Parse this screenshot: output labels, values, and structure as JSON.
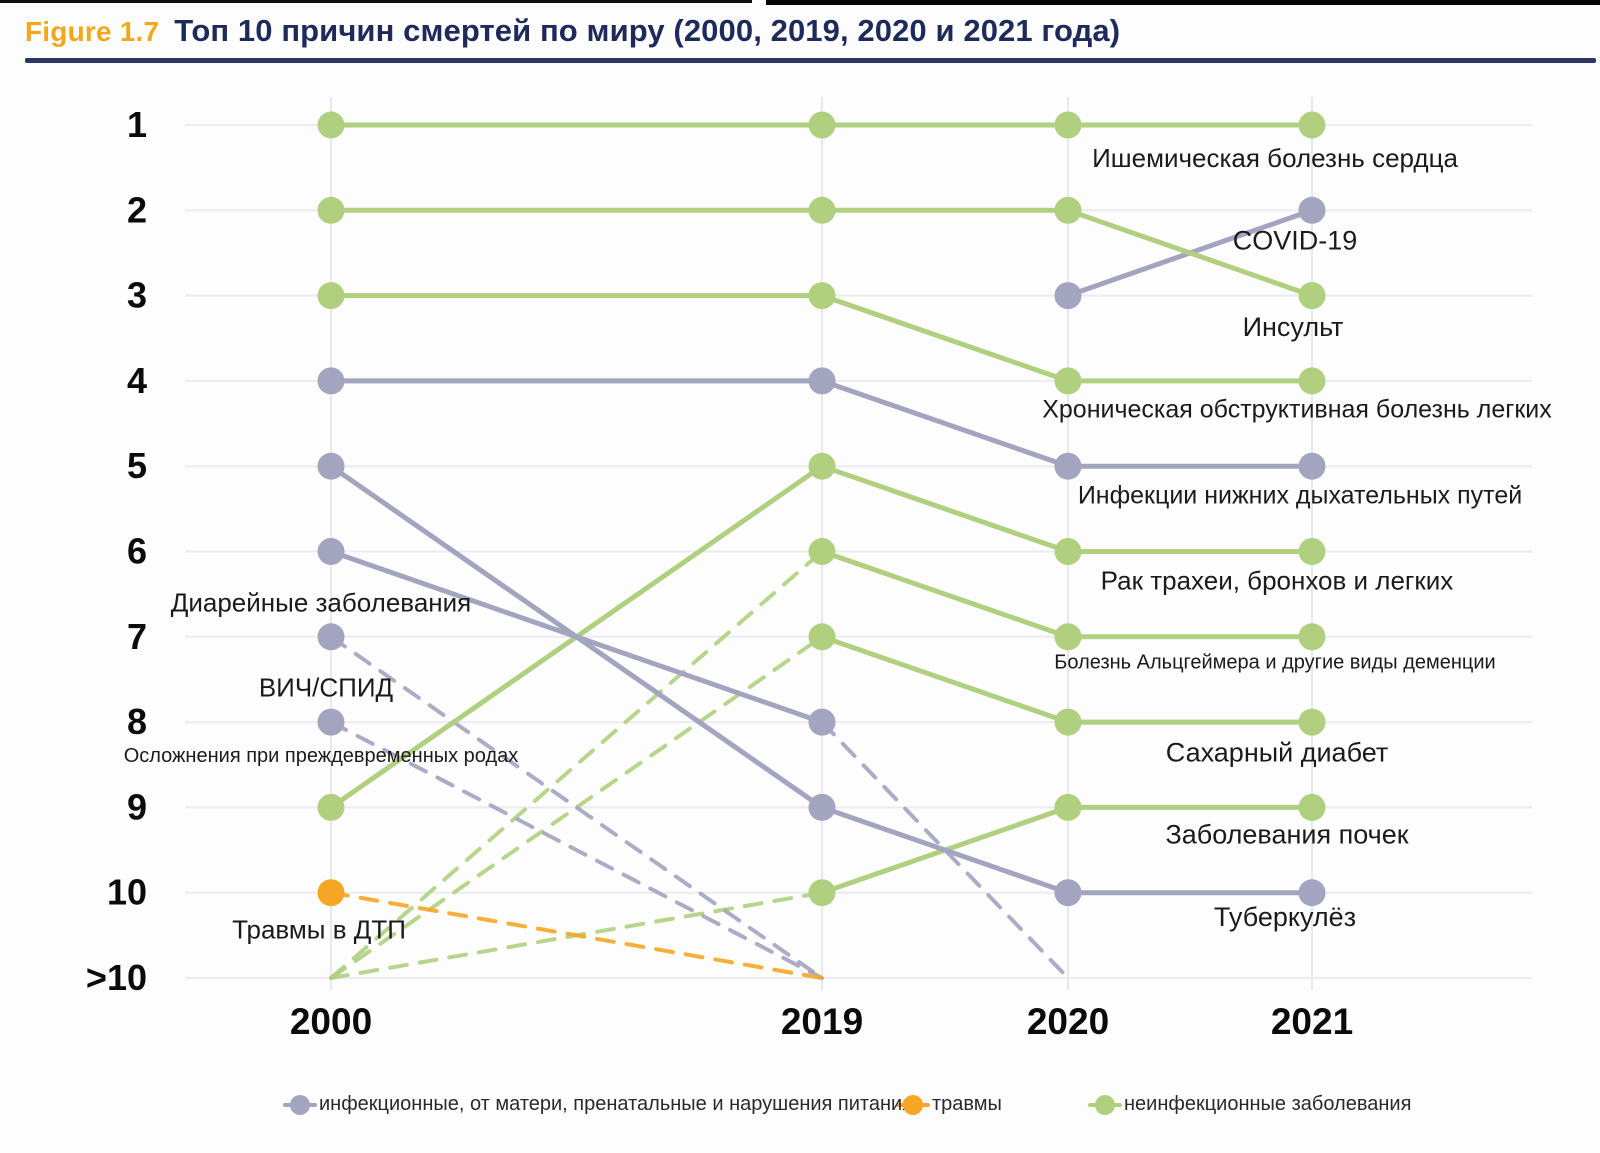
{
  "header": {
    "figure_label": "Figure 1.7",
    "title": "Топ 10 причин смертей по миру (2000, 2019, 2020 и 2021 года)"
  },
  "colors": {
    "communicable": "#a3a4bf",
    "injuries": "#f6a625",
    "noncommunicable": "#b0d080",
    "grid_horizontal": "#ebebf0",
    "grid_vertical": "#e7e7ee",
    "axis_text": "#0b0b0b",
    "label_text": "#1b1b1b",
    "title_navy": "#1e2a5a",
    "figure_orange": "#f3a71b"
  },
  "chart_data": {
    "type": "line",
    "subtype": "bump-rank-chart",
    "x_categories": [
      "2000",
      "2019",
      "2020",
      "2021"
    ],
    "rank_labels": [
      "1",
      "2",
      "3",
      "4",
      "5",
      "6",
      "7",
      "8",
      "9",
      "10",
      ">10"
    ],
    "grid": true,
    "legend_position": "bottom",
    "series": [
      {
        "key": "ischemic-heart-disease",
        "name": "Ишемическая болезнь сердца",
        "group": "noncommunicable",
        "solid": [
          [
            "2000",
            "1"
          ],
          [
            "2019",
            "1"
          ],
          [
            "2020",
            "1"
          ],
          [
            "2021",
            "1"
          ]
        ],
        "dashed": [],
        "label": {
          "text": "Ишемическая болезнь сердца",
          "anchor_year": "2021",
          "anchor_rank": "1",
          "dx": -37,
          "dy": 33,
          "size": 26
        }
      },
      {
        "key": "covid-19",
        "name": "COVID-19",
        "group": "communicable",
        "solid": [
          [
            "2020",
            "3"
          ],
          [
            "2021",
            "2"
          ]
        ],
        "dashed": [],
        "label": {
          "text": "COVID-19",
          "anchor_year": "2021",
          "anchor_rank": "2",
          "dx": -17,
          "dy": 30,
          "size": 27
        }
      },
      {
        "key": "stroke",
        "name": "Инсульт",
        "group": "noncommunicable",
        "solid": [
          [
            "2000",
            "2"
          ],
          [
            "2019",
            "2"
          ],
          [
            "2020",
            "2"
          ],
          [
            "2021",
            "3"
          ]
        ],
        "dashed": [],
        "label": {
          "text": "Инсульт",
          "anchor_year": "2021",
          "anchor_rank": "3",
          "dx": -19,
          "dy": 31,
          "size": 27
        }
      },
      {
        "key": "copd",
        "name": "Хроническая обструктивная болезнь легких",
        "group": "noncommunicable",
        "solid": [
          [
            "2000",
            "3"
          ],
          [
            "2019",
            "3"
          ],
          [
            "2020",
            "4"
          ],
          [
            "2021",
            "4"
          ]
        ],
        "dashed": [],
        "label": {
          "text": "Хроническая обструктивная болезнь легких",
          "anchor_year": "2021",
          "anchor_rank": "4",
          "dx": -15,
          "dy": 28,
          "size": 25
        }
      },
      {
        "key": "lower-respiratory-infections",
        "name": "Инфекции нижних дыхательных путей",
        "group": "communicable",
        "solid": [
          [
            "2000",
            "4"
          ],
          [
            "2019",
            "4"
          ],
          [
            "2020",
            "5"
          ],
          [
            "2021",
            "5"
          ]
        ],
        "dashed": [],
        "label": {
          "text": "Инфекции нижних дыхательных путей",
          "anchor_year": "2021",
          "anchor_rank": "5",
          "dx": -12,
          "dy": 29,
          "size": 25
        }
      },
      {
        "key": "lung-cancers",
        "name": "Рак трахеи, бронхов и легких",
        "group": "noncommunicable",
        "solid": [
          [
            "2000",
            "9"
          ],
          [
            "2019",
            "5"
          ],
          [
            "2020",
            "6"
          ],
          [
            "2021",
            "6"
          ]
        ],
        "dashed": [],
        "label": {
          "text": "Рак трахеи, бронхов и легких",
          "anchor_year": "2021",
          "anchor_rank": "6",
          "dx": -35,
          "dy": 29,
          "size": 26
        }
      },
      {
        "key": "alzheimer-dementia",
        "name": "Болезнь Альцгеймера и другие виды деменции",
        "group": "noncommunicable",
        "solid": [
          [
            "2019",
            "6"
          ],
          [
            "2020",
            "7"
          ],
          [
            "2021",
            "7"
          ]
        ],
        "dashed": [
          [
            [
              "2000",
              ">10"
            ],
            [
              "2019",
              "6"
            ]
          ]
        ],
        "label": {
          "text": "Болезнь Альцгеймера и другие виды деменции",
          "anchor_year": "2021",
          "anchor_rank": "7",
          "dx": -37,
          "dy": 25,
          "size": 20
        }
      },
      {
        "key": "diabetes",
        "name": "Сахарный диабет",
        "group": "noncommunicable",
        "solid": [
          [
            "2019",
            "7"
          ],
          [
            "2020",
            "8"
          ],
          [
            "2021",
            "8"
          ]
        ],
        "dashed": [
          [
            [
              "2000",
              ">10"
            ],
            [
              "2019",
              "7"
            ]
          ]
        ],
        "label": {
          "text": "Сахарный диабет",
          "anchor_year": "2021",
          "anchor_rank": "8",
          "dx": -35,
          "dy": 30,
          "size": 27
        }
      },
      {
        "key": "kidney-diseases",
        "name": "Заболевания почек",
        "group": "noncommunicable",
        "solid": [
          [
            "2019",
            "10"
          ],
          [
            "2020",
            "9"
          ],
          [
            "2021",
            "9"
          ]
        ],
        "dashed": [
          [
            [
              "2000",
              ">10"
            ],
            [
              "2019",
              "10"
            ]
          ]
        ],
        "label": {
          "text": "Заболевания почек",
          "anchor_year": "2021",
          "anchor_rank": "9",
          "dx": -25,
          "dy": 27,
          "size": 27
        }
      },
      {
        "key": "tuberculosis",
        "name": "Туберкулёз",
        "group": "communicable",
        "solid": [
          [
            "2000",
            "5"
          ],
          [
            "2019",
            "9"
          ],
          [
            "2020",
            "10"
          ],
          [
            "2021",
            "10"
          ]
        ],
        "dashed": [],
        "label": {
          "text": "Туберкулёз",
          "anchor_year": "2021",
          "anchor_rank": "10",
          "dx": -27,
          "dy": 24,
          "size": 27
        }
      },
      {
        "key": "diarrheal-diseases",
        "name": "Диарейные заболевания",
        "group": "communicable",
        "solid": [
          [
            "2000",
            "6"
          ],
          [
            "2019",
            "8"
          ]
        ],
        "dashed": [
          [
            [
              "2019",
              "8"
            ],
            [
              "2020",
              ">10"
            ]
          ]
        ],
        "label": {
          "text": "Диарейные заболевания",
          "anchor_year": "2000",
          "anchor_rank": "6",
          "dx": -10,
          "dy": 51,
          "size": 26
        }
      },
      {
        "key": "hiv-aids",
        "name": "ВИЧ/СПИД",
        "group": "communicable",
        "solid": [
          [
            "2000",
            "7"
          ]
        ],
        "dashed": [
          [
            [
              "2000",
              "7"
            ],
            [
              "2019",
              ">10"
            ]
          ]
        ],
        "label": {
          "text": "ВИЧ/СПИД",
          "anchor_year": "2000",
          "anchor_rank": "7",
          "dx": -5,
          "dy": 51,
          "size": 26
        }
      },
      {
        "key": "preterm-birth-complications",
        "name": "Осложнения при преждевременных родах",
        "group": "communicable",
        "solid": [
          [
            "2000",
            "8"
          ]
        ],
        "dashed": [
          [
            [
              "2000",
              "8"
            ],
            [
              "2019",
              ">10"
            ]
          ]
        ],
        "label": {
          "text": "Осложнения при преждевременных родах",
          "anchor_year": "2000",
          "anchor_rank": "8",
          "dx": -10,
          "dy": 33,
          "size": 20
        }
      },
      {
        "key": "road-traffic-injuries",
        "name": "Травмы в ДТП",
        "group": "injuries",
        "solid": [
          [
            "2000",
            "10"
          ]
        ],
        "dashed": [
          [
            [
              "2000",
              "10"
            ],
            [
              "2019",
              ">10"
            ]
          ]
        ],
        "label": {
          "text": "Травмы в ДТП",
          "anchor_year": "2000",
          "anchor_rank": "10",
          "dx": -12,
          "dy": 37,
          "size": 26
        }
      }
    ],
    "legend": [
      {
        "key": "communicable",
        "label": "инфекционные, от матери, пренатальные и нарушения питания"
      },
      {
        "key": "injuries",
        "label": "травмы"
      },
      {
        "key": "noncommunicable",
        "label": "неинфекционные заболевания"
      }
    ]
  }
}
